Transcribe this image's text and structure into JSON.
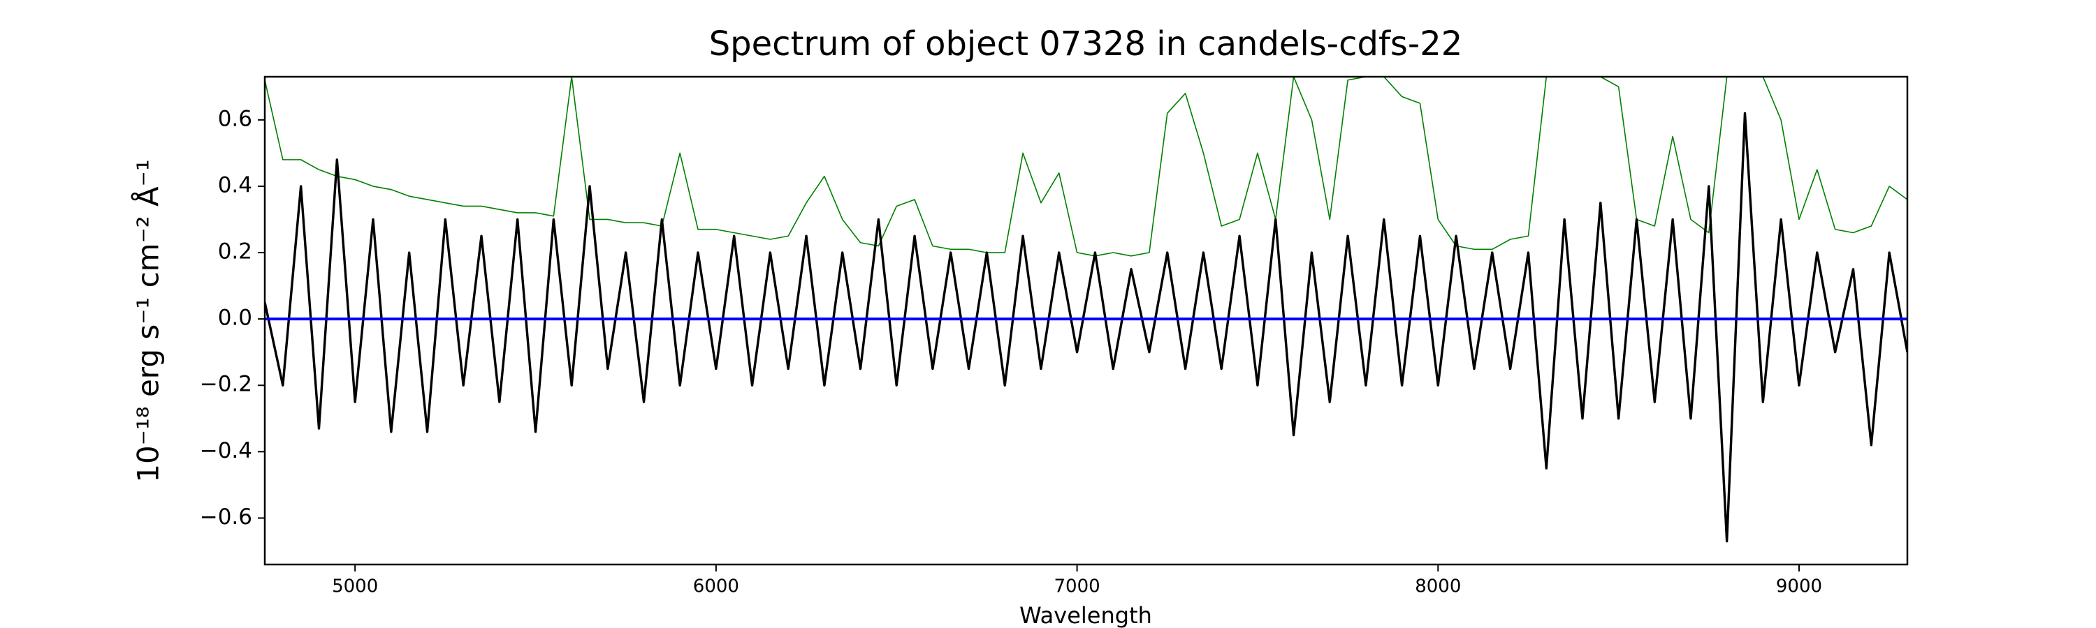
{
  "chart_data": {
    "type": "line",
    "title": "Spectrum of object 07328 in candels-cdfs-22",
    "x_label": "Wavelength",
    "y_label": "10⁻¹⁸ erg s⁻¹ cm⁻² Å⁻¹",
    "x": [
      4750,
      4800,
      4850,
      4900,
      4950,
      5000,
      5050,
      5100,
      5150,
      5200,
      5250,
      5300,
      5350,
      5400,
      5450,
      5500,
      5550,
      5600,
      5650,
      5700,
      5750,
      5800,
      5850,
      5900,
      5950,
      6000,
      6050,
      6100,
      6150,
      6200,
      6250,
      6300,
      6350,
      6400,
      6450,
      6500,
      6550,
      6600,
      6650,
      6700,
      6750,
      6800,
      6850,
      6900,
      6950,
      7000,
      7050,
      7100,
      7150,
      7200,
      7250,
      7300,
      7350,
      7400,
      7450,
      7500,
      7550,
      7600,
      7650,
      7700,
      7750,
      7800,
      7850,
      7900,
      7950,
      8000,
      8050,
      8100,
      8150,
      8200,
      8250,
      8300,
      8350,
      8400,
      8450,
      8500,
      8550,
      8600,
      8650,
      8700,
      8750,
      8800,
      8850,
      8900,
      8950,
      9000,
      9050,
      9100,
      9150,
      9200,
      9250,
      9300
    ],
    "series": [
      {
        "color": "#008000",
        "values": [
          0.72,
          0.48,
          0.48,
          0.45,
          0.43,
          0.42,
          0.4,
          0.39,
          0.37,
          0.36,
          0.35,
          0.34,
          0.34,
          0.33,
          0.32,
          0.32,
          0.31,
          0.73,
          0.3,
          0.3,
          0.29,
          0.29,
          0.28,
          0.5,
          0.27,
          0.27,
          0.26,
          0.25,
          0.24,
          0.25,
          0.35,
          0.43,
          0.3,
          0.23,
          0.22,
          0.34,
          0.36,
          0.22,
          0.21,
          0.21,
          0.2,
          0.2,
          0.5,
          0.35,
          0.44,
          0.2,
          0.19,
          0.2,
          0.19,
          0.2,
          0.62,
          0.68,
          0.5,
          0.28,
          0.3,
          0.5,
          0.3,
          0.73,
          0.6,
          0.3,
          0.72,
          0.73,
          0.73,
          0.67,
          0.65,
          0.3,
          0.22,
          0.21,
          0.21,
          0.24,
          0.25,
          0.73,
          0.73,
          0.73,
          0.73,
          0.7,
          0.3,
          0.28,
          0.55,
          0.3,
          0.26,
          0.73,
          0.73,
          0.73,
          0.6,
          0.3,
          0.45,
          0.27,
          0.26,
          0.28,
          0.4,
          0.36
        ]
      },
      {
        "color": "#000000",
        "values": [
          0.05,
          -0.2,
          0.4,
          -0.33,
          0.48,
          -0.25,
          0.3,
          -0.34,
          0.2,
          -0.34,
          0.3,
          -0.2,
          0.25,
          -0.25,
          0.3,
          -0.34,
          0.3,
          -0.2,
          0.4,
          -0.15,
          0.2,
          -0.25,
          0.3,
          -0.2,
          0.2,
          -0.15,
          0.25,
          -0.2,
          0.2,
          -0.15,
          0.25,
          -0.2,
          0.2,
          -0.15,
          0.3,
          -0.2,
          0.25,
          -0.15,
          0.2,
          -0.15,
          0.2,
          -0.2,
          0.25,
          -0.15,
          0.2,
          -0.1,
          0.2,
          -0.15,
          0.15,
          -0.1,
          0.2,
          -0.15,
          0.2,
          -0.15,
          0.25,
          -0.2,
          0.3,
          -0.35,
          0.2,
          -0.25,
          0.25,
          -0.2,
          0.3,
          -0.2,
          0.25,
          -0.2,
          0.25,
          -0.15,
          0.2,
          -0.15,
          0.2,
          -0.45,
          0.3,
          -0.3,
          0.35,
          -0.3,
          0.3,
          -0.25,
          0.3,
          -0.3,
          0.4,
          -0.67,
          0.62,
          -0.25,
          0.3,
          -0.2,
          0.2,
          -0.1,
          0.15,
          -0.38,
          0.2,
          -0.1
        ]
      },
      {
        "color": "#0000ff",
        "values": [
          0,
          0,
          0,
          0,
          0,
          0,
          0,
          0,
          0,
          0,
          0,
          0,
          0,
          0,
          0,
          0,
          0,
          0,
          0,
          0,
          0,
          0,
          0,
          0,
          0,
          0,
          0,
          0,
          0,
          0,
          0,
          0,
          0,
          0,
          0,
          0,
          0,
          0,
          0,
          0,
          0,
          0,
          0,
          0,
          0,
          0,
          0,
          0,
          0,
          0,
          0,
          0,
          0,
          0,
          0,
          0,
          0,
          0,
          0,
          0,
          0,
          0,
          0,
          0,
          0,
          0,
          0,
          0,
          0,
          0,
          0,
          0,
          0,
          0,
          0,
          0,
          0,
          0,
          0,
          0,
          0,
          0,
          0,
          0,
          0,
          0,
          0,
          0,
          0,
          0,
          0,
          0
        ]
      }
    ],
    "xlim": [
      4750,
      9300
    ],
    "ylim": [
      -0.74,
      0.73
    ],
    "xticks": [
      5000,
      6000,
      7000,
      8000,
      9000
    ],
    "yticks": [
      {
        "value": -0.6,
        "label": "−0.6"
      },
      {
        "value": -0.4,
        "label": "−0.4"
      },
      {
        "value": -0.2,
        "label": "−0.2"
      },
      {
        "value": 0,
        "label": "0.0"
      },
      0.2,
      0.4,
      0.6
    ],
    "grid": false
  }
}
